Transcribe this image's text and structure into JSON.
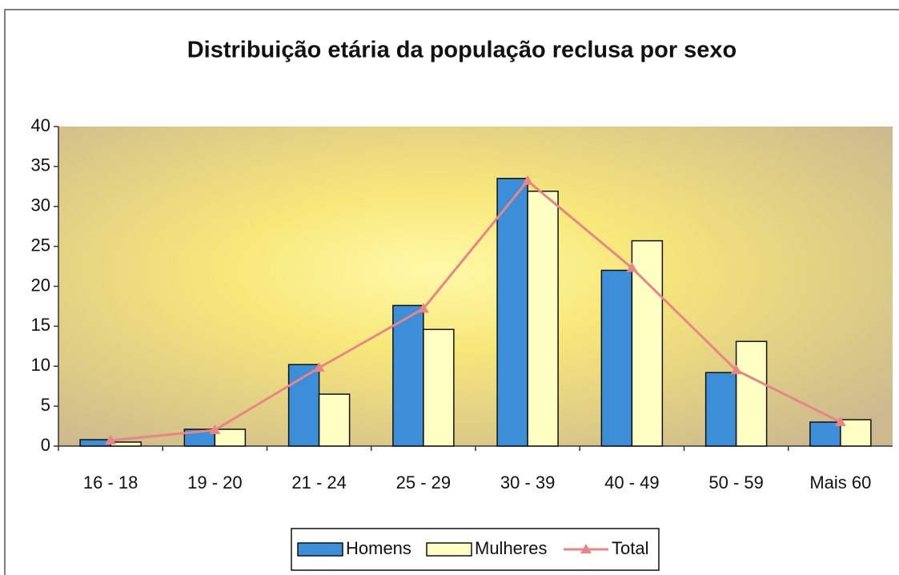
{
  "chart_data": {
    "type": "bar",
    "title": "Distribuição etária da população reclusa por sexo",
    "categories": [
      "16 - 18",
      "19 - 20",
      "21 - 24",
      "25 - 29",
      "30 - 39",
      "40 - 49",
      "50 - 59",
      "Mais 60"
    ],
    "series": [
      {
        "name": "Homens",
        "type": "bar",
        "color": "#3d8ed8",
        "values": [
          0.8,
          2.1,
          10.2,
          17.6,
          33.5,
          22,
          9.2,
          3
        ]
      },
      {
        "name": "Mulheres",
        "type": "bar",
        "color": "#ffffc4",
        "values": [
          0.5,
          2.1,
          6.5,
          14.6,
          31.9,
          25.7,
          13.1,
          3.3
        ]
      },
      {
        "name": "Total",
        "type": "line",
        "color": "#e98585",
        "values": [
          0.7,
          2,
          9.8,
          17.2,
          33.2,
          22.3,
          9.5,
          3
        ]
      }
    ],
    "ylim": [
      0,
      40
    ],
    "yticks": [
      0,
      5,
      10,
      15,
      20,
      25,
      30,
      35,
      40
    ],
    "legend": "bottom"
  }
}
